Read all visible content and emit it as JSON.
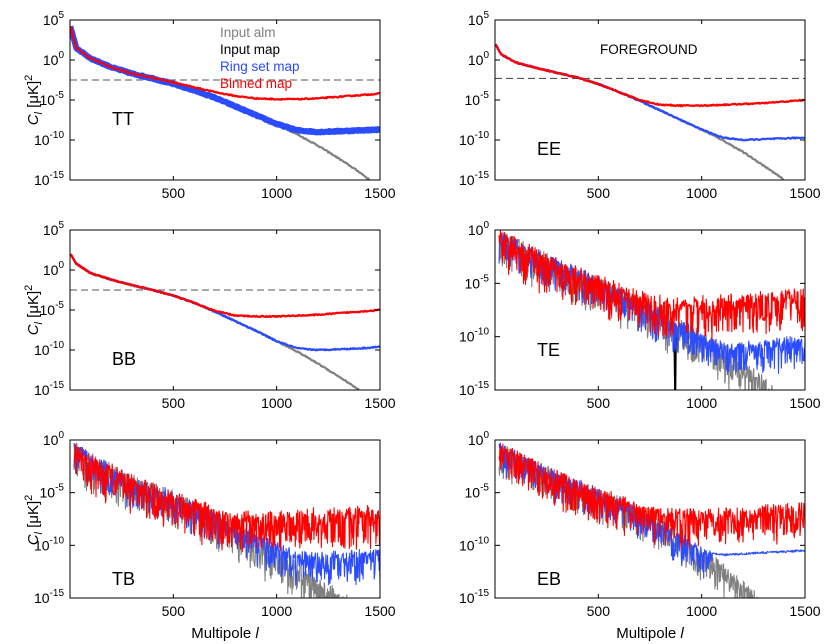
{
  "figure": {
    "legend": [
      {
        "label": "Input alm",
        "color": "#808080"
      },
      {
        "label": "Input map",
        "color": "#000000"
      },
      {
        "label": "Ring set map",
        "color": "#2b4bff"
      },
      {
        "label": "Binned map",
        "color": "#ff0000"
      }
    ],
    "foreground_label": "FOREGROUND",
    "colors": {
      "input_alm": "#808080",
      "input_map": "#000000",
      "ring_set_map": "#2b4bff",
      "binned_map": "#ff0000",
      "noise_level": "#555555"
    }
  },
  "chart_data": [
    {
      "id": "tt",
      "type": "line",
      "panel_label": "TT",
      "xlabel": "",
      "ylabel": "C_l [μK]^2",
      "xlim": [
        0,
        1500
      ],
      "ylog": true,
      "ylim_exp": [
        -15,
        5
      ],
      "xticks": [
        500,
        1000,
        1500
      ],
      "yticks_exp": [
        5,
        0,
        -5,
        -10,
        -15
      ],
      "noise_level_exp": -2.5,
      "series": [
        {
          "name": "Input alm",
          "x": [
            2,
            30,
            100,
            200,
            300,
            400,
            500,
            600,
            700,
            800,
            900,
            1000,
            1100,
            1200,
            1300,
            1400,
            1450
          ],
          "log10_y": [
            4.2,
            1.5,
            0.2,
            -0.9,
            -1.7,
            -2.3,
            -3.0,
            -3.8,
            -4.7,
            -5.8,
            -6.9,
            -8.0,
            -9.3,
            -10.7,
            -12.3,
            -14.0,
            -15.0
          ]
        },
        {
          "name": "Ring set map",
          "x": [
            2,
            30,
            100,
            200,
            300,
            400,
            500,
            600,
            700,
            800,
            900,
            1000,
            1100,
            1200,
            1300,
            1400,
            1500
          ],
          "log10_y": [
            4.2,
            1.5,
            0.2,
            -0.9,
            -1.7,
            -2.3,
            -3.0,
            -3.8,
            -4.7,
            -5.8,
            -6.9,
            -8.0,
            -8.8,
            -9.0,
            -8.9,
            -8.8,
            -8.7
          ],
          "band": 0.5
        },
        {
          "name": "Binned map",
          "x": [
            2,
            30,
            100,
            200,
            300,
            400,
            500,
            600,
            700,
            800,
            900,
            1000,
            1100,
            1200,
            1300,
            1400,
            1500
          ],
          "log10_y": [
            4.2,
            1.5,
            0.2,
            -0.9,
            -1.7,
            -2.2,
            -2.8,
            -3.4,
            -4.0,
            -4.5,
            -4.8,
            -4.9,
            -4.9,
            -4.8,
            -4.6,
            -4.4,
            -4.2
          ]
        }
      ]
    },
    {
      "id": "ee",
      "type": "line",
      "panel_label": "EE",
      "xlabel": "",
      "ylabel": "",
      "xlim": [
        0,
        1500
      ],
      "ylog": true,
      "ylim_exp": [
        -15,
        5
      ],
      "xticks": [
        500,
        1000,
        1500
      ],
      "yticks_exp": [
        5,
        0,
        -5,
        -10,
        -15
      ],
      "noise_level_exp": -2.3,
      "series": [
        {
          "name": "Input alm",
          "x": [
            2,
            30,
            100,
            200,
            300,
            400,
            500,
            600,
            700,
            800,
            900,
            1000,
            1100,
            1200,
            1300,
            1400
          ],
          "log10_y": [
            2.0,
            0.7,
            -0.3,
            -1.0,
            -1.6,
            -2.2,
            -3.0,
            -4.0,
            -5.1,
            -6.3,
            -7.5,
            -8.7,
            -10.0,
            -11.5,
            -13.2,
            -15.0
          ]
        },
        {
          "name": "Ring set map",
          "x": [
            2,
            30,
            100,
            200,
            300,
            400,
            500,
            600,
            700,
            800,
            900,
            1000,
            1100,
            1200,
            1300,
            1400,
            1500
          ],
          "log10_y": [
            2.0,
            0.7,
            -0.3,
            -1.0,
            -1.6,
            -2.2,
            -3.0,
            -4.0,
            -5.1,
            -6.3,
            -7.5,
            -8.7,
            -9.7,
            -10.0,
            -9.9,
            -9.8,
            -9.7
          ]
        },
        {
          "name": "Binned map",
          "x": [
            2,
            30,
            100,
            200,
            300,
            400,
            500,
            600,
            700,
            800,
            900,
            1000,
            1100,
            1200,
            1300,
            1400,
            1500
          ],
          "log10_y": [
            2.0,
            0.7,
            -0.3,
            -1.0,
            -1.6,
            -2.2,
            -3.0,
            -4.0,
            -5.0,
            -5.6,
            -5.7,
            -5.7,
            -5.6,
            -5.5,
            -5.4,
            -5.2,
            -5.0
          ]
        }
      ]
    },
    {
      "id": "bb",
      "type": "line",
      "panel_label": "BB",
      "xlabel": "",
      "ylabel": "C_l [μK]^2",
      "xlim": [
        0,
        1500
      ],
      "ylog": true,
      "ylim_exp": [
        -15,
        5
      ],
      "xticks": [
        500,
        1000,
        1500
      ],
      "yticks_exp": [
        5,
        0,
        -5,
        -10,
        -15
      ],
      "noise_level_exp": -2.5,
      "series": [
        {
          "name": "Input alm",
          "x": [
            2,
            30,
            100,
            200,
            300,
            400,
            500,
            600,
            700,
            800,
            900,
            1000,
            1100,
            1200,
            1300,
            1400
          ],
          "log10_y": [
            2.0,
            0.8,
            -0.4,
            -1.2,
            -1.9,
            -2.5,
            -3.2,
            -4.1,
            -5.2,
            -6.4,
            -7.6,
            -8.9,
            -10.2,
            -11.7,
            -13.3,
            -15.0
          ]
        },
        {
          "name": "Ring set map",
          "x": [
            2,
            30,
            100,
            200,
            300,
            400,
            500,
            600,
            700,
            800,
            900,
            1000,
            1100,
            1200,
            1300,
            1400,
            1500
          ],
          "log10_y": [
            2.0,
            0.8,
            -0.4,
            -1.2,
            -1.9,
            -2.5,
            -3.2,
            -4.1,
            -5.2,
            -6.4,
            -7.6,
            -8.9,
            -9.8,
            -10.0,
            -9.9,
            -9.8,
            -9.6
          ]
        },
        {
          "name": "Binned map",
          "x": [
            2,
            30,
            100,
            200,
            300,
            400,
            500,
            600,
            700,
            800,
            900,
            1000,
            1100,
            1200,
            1300,
            1400,
            1500
          ],
          "log10_y": [
            2.0,
            0.8,
            -0.4,
            -1.2,
            -1.9,
            -2.5,
            -3.2,
            -4.1,
            -5.1,
            -5.7,
            -5.8,
            -5.8,
            -5.7,
            -5.6,
            -5.4,
            -5.2,
            -5.0
          ]
        }
      ]
    },
    {
      "id": "te",
      "type": "line",
      "panel_label": "TE",
      "xlabel": "",
      "ylabel": "",
      "xlim": [
        0,
        1500
      ],
      "ylog": true,
      "ylim_exp": [
        -15,
        0
      ],
      "xticks": [
        500,
        1000,
        1500
      ],
      "yticks_exp": [
        0,
        -5,
        -10,
        -15
      ],
      "series": [
        {
          "name": "Input alm",
          "x": [
            20,
            100,
            200,
            300,
            400,
            500,
            600,
            700,
            800,
            900,
            1000,
            1100,
            1200,
            1300,
            1350
          ],
          "log10_y": [
            -0.3,
            -1.0,
            -2.0,
            -3.0,
            -3.8,
            -4.5,
            -5.6,
            -6.6,
            -7.6,
            -8.8,
            -9.8,
            -11.0,
            -12.5,
            -14.0,
            -15.0
          ],
          "noise": 1.5
        },
        {
          "name": "Input map",
          "x": [
            868,
            872,
            875
          ],
          "log10_y": [
            -9.5,
            -15.0,
            -9.5
          ],
          "noise": 0
        },
        {
          "name": "Ring set map",
          "x": [
            20,
            100,
            200,
            300,
            400,
            500,
            600,
            700,
            800,
            900,
            1000,
            1100,
            1200,
            1300,
            1400,
            1500
          ],
          "log10_y": [
            -0.3,
            -1.0,
            -2.0,
            -3.0,
            -3.8,
            -4.5,
            -5.6,
            -6.6,
            -7.6,
            -8.8,
            -9.8,
            -10.8,
            -10.7,
            -10.5,
            -10.3,
            -10.1
          ],
          "noise": 1.3
        },
        {
          "name": "Binned map",
          "x": [
            20,
            100,
            200,
            300,
            400,
            500,
            600,
            700,
            800,
            900,
            1000,
            1100,
            1200,
            1300,
            1400,
            1500
          ],
          "log10_y": [
            -0.3,
            -1.0,
            -2.0,
            -3.0,
            -3.8,
            -4.5,
            -5.3,
            -6.0,
            -6.5,
            -6.6,
            -6.5,
            -6.4,
            -6.3,
            -6.1,
            -6.0,
            -5.8
          ],
          "noise": 1.6
        }
      ]
    },
    {
      "id": "tb",
      "type": "line",
      "panel_label": "TB",
      "xlabel": "Multipole l",
      "ylabel": "C_l [μK]^2",
      "xlim": [
        0,
        1500
      ],
      "ylog": true,
      "ylim_exp": [
        -15,
        0
      ],
      "xticks": [
        500,
        1000,
        1500
      ],
      "yticks_exp": [
        0,
        -5,
        -10,
        -15
      ],
      "series": [
        {
          "name": "Input alm",
          "x": [
            20,
            100,
            200,
            300,
            400,
            500,
            600,
            700,
            800,
            900,
            1000,
            1100,
            1200,
            1300,
            1340
          ],
          "log10_y": [
            -0.5,
            -1.5,
            -2.6,
            -3.6,
            -4.4,
            -5.1,
            -6.0,
            -7.0,
            -8.1,
            -9.3,
            -10.6,
            -11.9,
            -13.3,
            -14.6,
            -15.0
          ],
          "noise": 1.5
        },
        {
          "name": "Ring set map",
          "x": [
            20,
            100,
            200,
            300,
            400,
            500,
            600,
            700,
            800,
            900,
            1000,
            1100,
            1200,
            1300,
            1400,
            1500
          ],
          "log10_y": [
            -0.5,
            -1.5,
            -2.6,
            -3.6,
            -4.4,
            -5.1,
            -6.0,
            -7.0,
            -8.1,
            -9.0,
            -9.8,
            -10.8,
            -10.9,
            -10.8,
            -10.7,
            -10.6
          ],
          "noise": 1.3
        },
        {
          "name": "Binned map",
          "x": [
            20,
            100,
            200,
            300,
            400,
            500,
            600,
            700,
            800,
            900,
            1000,
            1100,
            1200,
            1300,
            1400,
            1500
          ],
          "log10_y": [
            -0.5,
            -1.5,
            -2.6,
            -3.6,
            -4.4,
            -5.1,
            -5.9,
            -6.6,
            -7.1,
            -7.1,
            -7.0,
            -6.9,
            -6.8,
            -6.7,
            -6.6,
            -6.5
          ],
          "noise": 1.6
        }
      ]
    },
    {
      "id": "eb",
      "type": "line",
      "panel_label": "EB",
      "xlabel": "Multipole l",
      "ylabel": "",
      "xlim": [
        0,
        1500
      ],
      "ylog": true,
      "ylim_exp": [
        -15,
        0
      ],
      "xticks": [
        500,
        1000,
        1500
      ],
      "yticks_exp": [
        0,
        -5,
        -10,
        -15
      ],
      "series": [
        {
          "name": "Input alm",
          "x": [
            20,
            100,
            200,
            300,
            400,
            500,
            600,
            700,
            800,
            900,
            1000,
            1100,
            1200,
            1280
          ],
          "log10_y": [
            -0.5,
            -1.3,
            -2.3,
            -3.2,
            -4.0,
            -4.8,
            -5.6,
            -6.6,
            -7.8,
            -9.0,
            -10.4,
            -11.9,
            -13.6,
            -15.0
          ],
          "noise": 1.3
        },
        {
          "name": "Ring set map",
          "x": [
            20,
            100,
            200,
            300,
            400,
            500,
            600,
            700,
            800,
            900,
            1000,
            1050,
            1100,
            1200,
            1300,
            1400,
            1500
          ],
          "log10_y": [
            -0.5,
            -1.3,
            -2.3,
            -3.2,
            -4.0,
            -4.8,
            -5.6,
            -6.6,
            -7.8,
            -9.0,
            -10.4,
            -10.8,
            -10.9,
            -10.8,
            -10.7,
            -10.6,
            -10.5
          ],
          "noise_until": 1050,
          "noise": 1.2
        },
        {
          "name": "Binned map",
          "x": [
            20,
            100,
            200,
            300,
            400,
            500,
            600,
            700,
            800,
            900,
            1000,
            1100,
            1200,
            1300,
            1400,
            1500
          ],
          "log10_y": [
            -0.5,
            -1.3,
            -2.3,
            -3.2,
            -4.0,
            -4.8,
            -5.5,
            -6.2,
            -6.7,
            -6.8,
            -6.8,
            -6.7,
            -6.6,
            -6.5,
            -6.4,
            -6.3
          ],
          "noise": 1.5
        }
      ]
    }
  ]
}
